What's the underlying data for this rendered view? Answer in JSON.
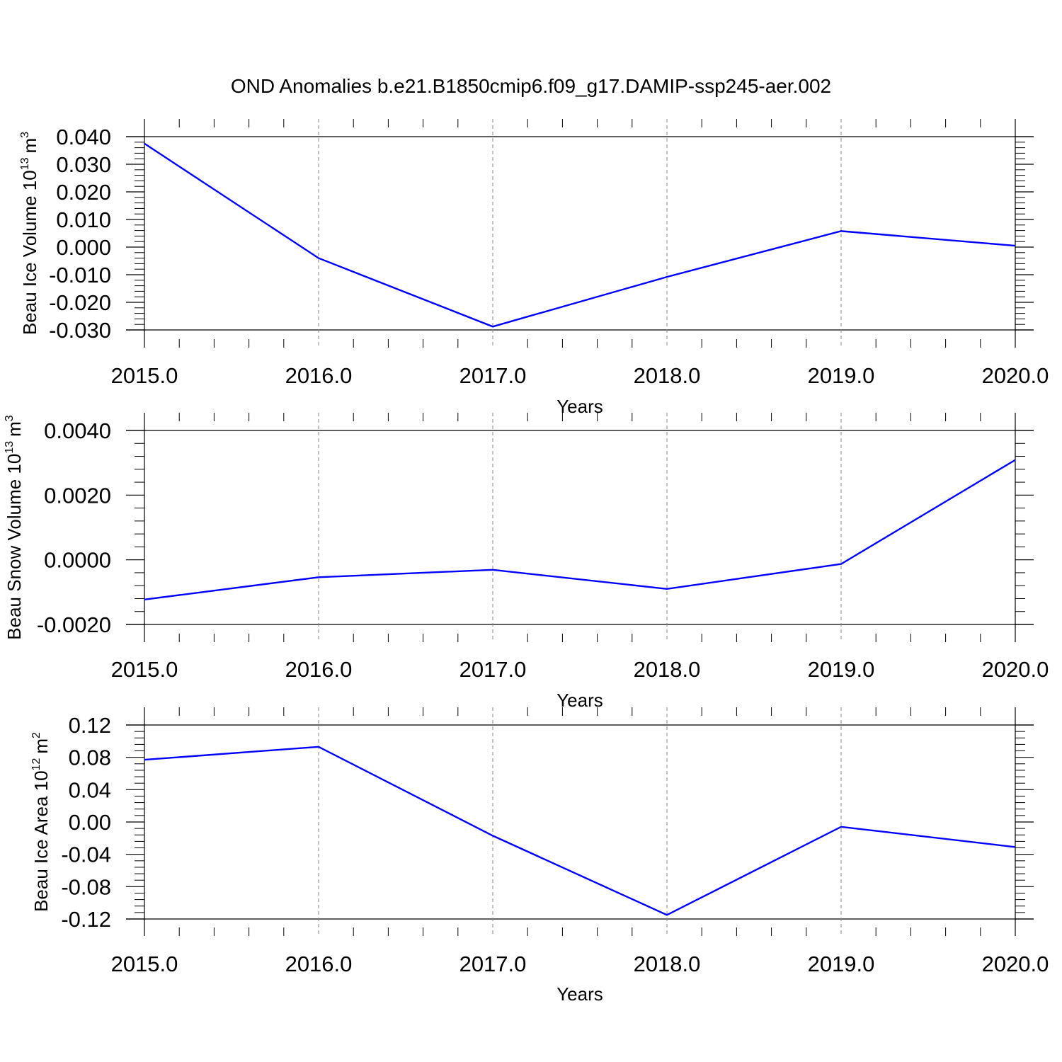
{
  "title": "OND Anomalies b.e21.B1850cmip6.f09_g17.DAMIP-ssp245-aer.002",
  "line_color": "#0000ff",
  "chart_data": [
    {
      "type": "line",
      "ylabel_main": "Beau Ice Volume 10",
      "ylabel_exp": "13",
      "ylabel_unit": "m",
      "ylabel_unit_exp": "3",
      "xlabel": "Years",
      "x": [
        2015,
        2016,
        2017,
        2018,
        2019,
        2020
      ],
      "x_tick_labels": [
        "2015.0",
        "2016.0",
        "2017.0",
        "2018.0",
        "2019.0",
        "2020.0"
      ],
      "y": [
        0.0375,
        -0.004,
        -0.0288,
        -0.0108,
        0.0058,
        0.0005
      ],
      "ylim": [
        -0.03,
        0.04
      ],
      "y_ticks": [
        0.04,
        0.03,
        0.02,
        0.01,
        0.0,
        -0.01,
        -0.02,
        -0.03
      ],
      "y_tick_labels": [
        "0.040",
        "0.030",
        "0.020",
        "0.010",
        "0.000",
        "-0.010",
        "-0.020",
        "-0.030"
      ],
      "grid": "vertical dashed at major x ticks"
    },
    {
      "type": "line",
      "ylabel_main": "Beau Snow Volume 10",
      "ylabel_exp": "13",
      "ylabel_unit": "m",
      "ylabel_unit_exp": "3",
      "xlabel": "Years",
      "x": [
        2015,
        2016,
        2017,
        2018,
        2019,
        2020
      ],
      "x_tick_labels": [
        "2015.0",
        "2016.0",
        "2017.0",
        "2018.0",
        "2019.0",
        "2020.0"
      ],
      "y": [
        -0.00123,
        -0.00054,
        -0.00031,
        -0.0009,
        -0.00013,
        0.00309
      ],
      "ylim": [
        -0.002,
        0.004
      ],
      "y_ticks": [
        0.004,
        0.002,
        0.0,
        -0.002
      ],
      "y_tick_labels": [
        "0.0040",
        "0.0020",
        "0.0000",
        "-0.0020"
      ],
      "grid": "vertical dashed at major x ticks"
    },
    {
      "type": "line",
      "ylabel_main": "Beau Ice Area 10",
      "ylabel_exp": "12",
      "ylabel_unit": "m",
      "ylabel_unit_exp": "2",
      "xlabel": "Years",
      "x": [
        2015,
        2016,
        2017,
        2018,
        2019,
        2020
      ],
      "x_tick_labels": [
        "2015.0",
        "2016.0",
        "2017.0",
        "2018.0",
        "2019.0",
        "2020.0"
      ],
      "y": [
        0.077,
        0.093,
        -0.017,
        -0.115,
        -0.006,
        -0.031
      ],
      "ylim": [
        -0.12,
        0.12
      ],
      "y_ticks": [
        0.12,
        0.08,
        0.04,
        0.0,
        -0.04,
        -0.08,
        -0.12
      ],
      "y_tick_labels": [
        "0.12",
        "0.08",
        "0.04",
        "0.00",
        "-0.04",
        "-0.08",
        "-0.12"
      ],
      "grid": "vertical dashed at major x ticks"
    }
  ]
}
